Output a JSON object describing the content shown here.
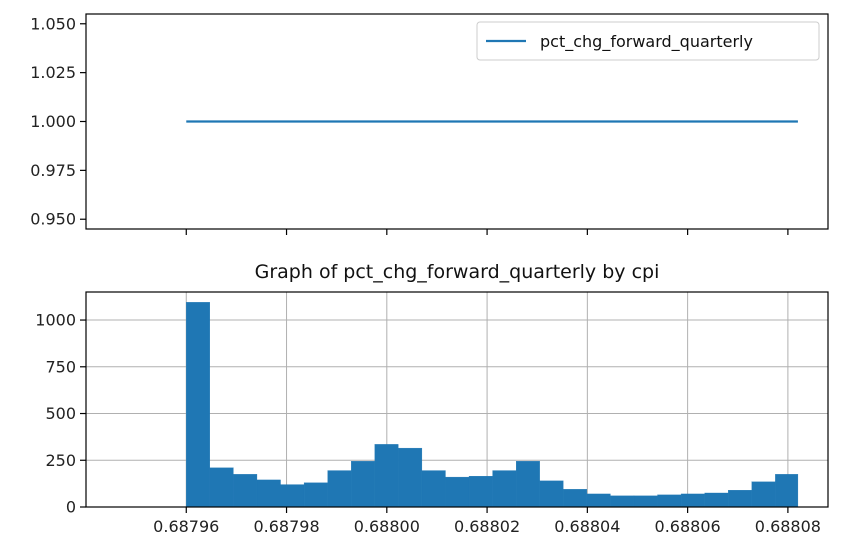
{
  "chart_data": [
    {
      "type": "line",
      "title": "",
      "xlabel": "",
      "ylabel": "",
      "series": [
        {
          "name": "pct_chg_forward_quarterly",
          "x": [
            0.68796,
            0.688082
          ],
          "values": [
            1.0,
            1.0
          ]
        }
      ],
      "xlim": [
        0.68794,
        0.688088
      ],
      "ylim": [
        0.945,
        1.055
      ],
      "yticks": [
        "0.950",
        "0.975",
        "1.000",
        "1.025",
        "1.050"
      ],
      "yticks_values": [
        0.95,
        0.975,
        1.0,
        1.025,
        1.05
      ],
      "xticks_values": [
        0.68796,
        0.68798,
        0.688,
        0.68802,
        0.68804,
        0.68806,
        0.68808
      ],
      "grid": false,
      "legend": "top-right",
      "line_color": "#1f77b4"
    },
    {
      "type": "bar",
      "title": "Graph of pct_chg_forward_quarterly by cpi",
      "xlabel": "",
      "ylabel": "",
      "bin_edges": [
        0.68796,
        0.6879647,
        0.6879694,
        0.6879741,
        0.6879788,
        0.6879835,
        0.6879882,
        0.6879929,
        0.6879976,
        0.6880023,
        0.688007,
        0.6880117,
        0.6880164,
        0.6880211,
        0.6880258,
        0.6880305,
        0.6880352,
        0.6880399,
        0.6880446,
        0.6880493,
        0.688054,
        0.6880587,
        0.6880634,
        0.6880681,
        0.6880728,
        0.6880775,
        0.688082
      ],
      "values": [
        1095,
        210,
        175,
        145,
        120,
        130,
        195,
        245,
        335,
        315,
        195,
        160,
        165,
        195,
        245,
        140,
        95,
        70,
        60,
        60,
        65,
        70,
        75,
        90,
        135,
        175
      ],
      "xlim": [
        0.68794,
        0.688088
      ],
      "ylim": [
        0,
        1150
      ],
      "yticks": [
        "0",
        "250",
        "500",
        "750",
        "1000"
      ],
      "yticks_values": [
        0,
        250,
        500,
        750,
        1000
      ],
      "xticks": [
        "0.68796",
        "0.68798",
        "0.68800",
        "0.68802",
        "0.68804",
        "0.68806",
        "0.68808"
      ],
      "xticks_values": [
        0.68796,
        0.68798,
        0.688,
        0.68802,
        0.68804,
        0.68806,
        0.68808
      ],
      "grid": true,
      "bar_color": "#1f77b4"
    }
  ]
}
